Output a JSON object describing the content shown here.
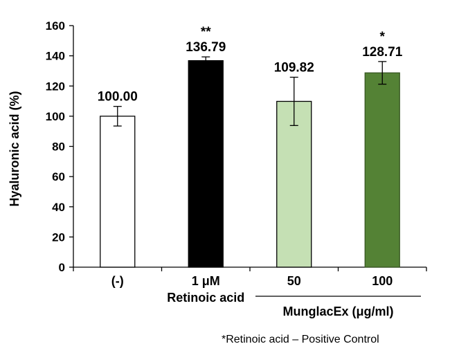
{
  "chart_data": {
    "type": "bar",
    "ylabel": "Hyaluronic acid (%)",
    "ylim": [
      0,
      160
    ],
    "yticks": [
      0,
      20,
      40,
      60,
      80,
      100,
      120,
      140,
      160
    ],
    "categories": [
      "(-)",
      "1 μM",
      "50",
      "100"
    ],
    "values": [
      100.0,
      136.79,
      109.82,
      128.71
    ],
    "value_labels": [
      "100.00",
      "136.79",
      "109.82",
      "128.71"
    ],
    "errors": [
      6.5,
      2.5,
      16.0,
      7.5
    ],
    "significance": [
      "",
      "**",
      "",
      "*"
    ],
    "colors": [
      "#ffffff",
      "#000000",
      "#c5e0b4",
      "#548235"
    ],
    "bar_edge_colors": [
      "#000000",
      "#000000",
      "#000000",
      "#385723"
    ],
    "group_labels": [
      {
        "text": "Retinoic acid",
        "categories": [
          1
        ],
        "underline": false
      },
      {
        "text": "MunglacEx (μg/ml)",
        "categories": [
          2,
          3
        ],
        "underline": true
      }
    ],
    "grid": false,
    "legend": "none"
  },
  "footnote": "*Retinoic acid – Positive Control"
}
